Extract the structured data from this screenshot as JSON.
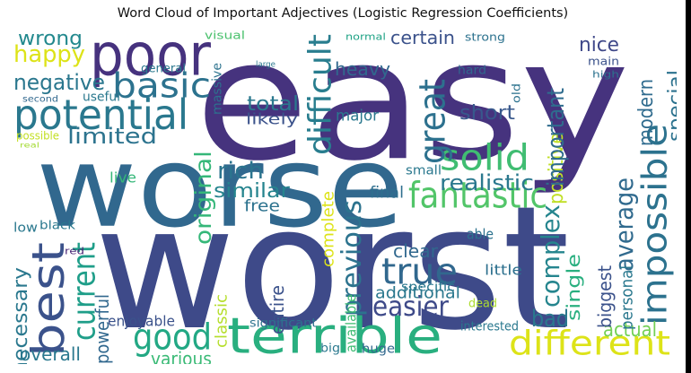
{
  "title": "Word Cloud of Important Adjectives (Logistic Regression Coefficients)",
  "words": [
    {
      "text": "easy",
      "color": "#46337e"
    },
    {
      "text": "worst",
      "color": "#3e4a89"
    },
    {
      "text": "worse",
      "color": "#31688e"
    },
    {
      "text": "poor",
      "color": "#46327e"
    },
    {
      "text": "potential",
      "color": "#2a788e"
    },
    {
      "text": "terrible",
      "color": "#29af7f"
    },
    {
      "text": "best",
      "color": "#3b528b"
    },
    {
      "text": "basic",
      "color": "#2c728e"
    },
    {
      "text": "fantastic",
      "color": "#52c569"
    },
    {
      "text": "solid",
      "color": "#40bd72"
    },
    {
      "text": "great",
      "color": "#2d718e"
    },
    {
      "text": "different",
      "color": "#dde318"
    },
    {
      "text": "good",
      "color": "#22a884"
    },
    {
      "text": "true",
      "color": "#31688e"
    },
    {
      "text": "current",
      "color": "#1f9e89"
    },
    {
      "text": "impossible",
      "color": "#2c728e"
    },
    {
      "text": "difficult",
      "color": "#287d8e"
    },
    {
      "text": "happy",
      "color": "#dde318"
    },
    {
      "text": "wrong",
      "color": "#23898e"
    },
    {
      "text": "negative",
      "color": "#2a778e"
    },
    {
      "text": "limited",
      "color": "#2c738e"
    },
    {
      "text": "realistic",
      "color": "#2a788e"
    },
    {
      "text": "easier",
      "color": "#3e4a89"
    },
    {
      "text": "previous",
      "color": "#2c738e"
    },
    {
      "text": "complex",
      "color": "#25858e"
    },
    {
      "text": "bad",
      "color": "#2a788e"
    },
    {
      "text": "average",
      "color": "#306a8e"
    },
    {
      "text": "rich",
      "color": "#2b748e"
    },
    {
      "text": "similar",
      "color": "#25848e"
    },
    {
      "text": "original",
      "color": "#35b779"
    },
    {
      "text": "positive",
      "color": "#c0df25"
    },
    {
      "text": "important",
      "color": "#2f6c8e"
    },
    {
      "text": "special",
      "color": "#2c728e"
    },
    {
      "text": "modern",
      "color": "#2f6b8e"
    },
    {
      "text": "certain",
      "color": "#3b528b"
    },
    {
      "text": "heavy",
      "color": "#31688e"
    },
    {
      "text": "total",
      "color": "#2a788e"
    },
    {
      "text": "short",
      "color": "#38588c"
    },
    {
      "text": "nice",
      "color": "#3f4889"
    },
    {
      "text": "necessary",
      "color": "#2a788e"
    },
    {
      "text": "actual",
      "color": "#73d055"
    },
    {
      "text": "overall",
      "color": "#2a788e"
    },
    {
      "text": "various",
      "color": "#3aba76"
    },
    {
      "text": "clear",
      "color": "#31688e"
    },
    {
      "text": "additional",
      "color": "#2a788e"
    },
    {
      "text": "single",
      "color": "#29af7f"
    },
    {
      "text": "biggest",
      "color": "#3b528b"
    },
    {
      "text": "personal",
      "color": "#2a788e"
    },
    {
      "text": "powerful",
      "color": "#31688e"
    },
    {
      "text": "classic",
      "color": "#b5de2b"
    },
    {
      "text": "entire",
      "color": "#3b528b"
    },
    {
      "text": "available",
      "color": "#3fbc73"
    },
    {
      "text": "complete",
      "color": "#dde318"
    },
    {
      "text": "final",
      "color": "#2e6e8e"
    },
    {
      "text": "free",
      "color": "#2c728e"
    },
    {
      "text": "likely",
      "color": "#3b528b"
    },
    {
      "text": "major",
      "color": "#2a788e"
    },
    {
      "text": "small",
      "color": "#2a788e"
    },
    {
      "text": "able",
      "color": "#2c728e"
    },
    {
      "text": "little",
      "color": "#2d708e"
    },
    {
      "text": "specific",
      "color": "#2a788e"
    },
    {
      "text": "live",
      "color": "#35b779"
    },
    {
      "text": "enjoyable",
      "color": "#3b528b"
    },
    {
      "text": "significant",
      "color": "#2c728e"
    },
    {
      "text": "interested",
      "color": "#2a788e"
    },
    {
      "text": "huge",
      "color": "#31688e"
    },
    {
      "text": "big",
      "color": "#2a788e"
    },
    {
      "text": "dead",
      "color": "#addc30"
    },
    {
      "text": "low",
      "color": "#2a788e"
    },
    {
      "text": "black",
      "color": "#2a788e"
    },
    {
      "text": "red",
      "color": "#482475"
    },
    {
      "text": "useful",
      "color": "#2a788e"
    },
    {
      "text": "second",
      "color": "#31688e"
    },
    {
      "text": "general",
      "color": "#2a788e"
    },
    {
      "text": "massive",
      "color": "#2c728e"
    },
    {
      "text": "visual",
      "color": "#4ac16d"
    },
    {
      "text": "normal",
      "color": "#20a386"
    },
    {
      "text": "strong",
      "color": "#2c728e"
    },
    {
      "text": "main",
      "color": "#3b528b"
    },
    {
      "text": "high",
      "color": "#2c728e"
    },
    {
      "text": "hard",
      "color": "#31688e"
    },
    {
      "text": "old",
      "color": "#2c728e"
    },
    {
      "text": "large",
      "color": "#2a788e"
    },
    {
      "text": "possible",
      "color": "#c2df23"
    },
    {
      "text": "real",
      "color": "#a5db36"
    }
  ]
}
